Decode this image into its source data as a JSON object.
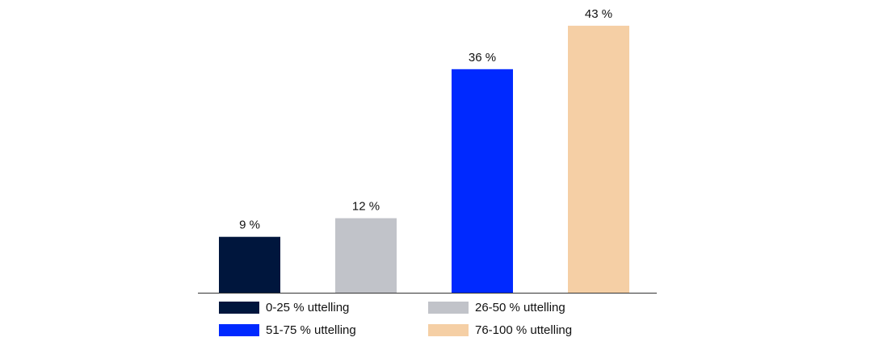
{
  "chart_data": {
    "type": "bar",
    "categories": [
      "0-25 % uttelling",
      "26-50 % uttelling",
      "51-75 % uttelling",
      "76-100 % uttelling"
    ],
    "values": [
      9,
      12,
      36,
      43
    ],
    "value_labels": [
      "9 %",
      "12 %",
      "36 %",
      "43 %"
    ],
    "colors": [
      "#00163d",
      "#c1c3c9",
      "#0029ff",
      "#f5cfa5"
    ]
  }
}
